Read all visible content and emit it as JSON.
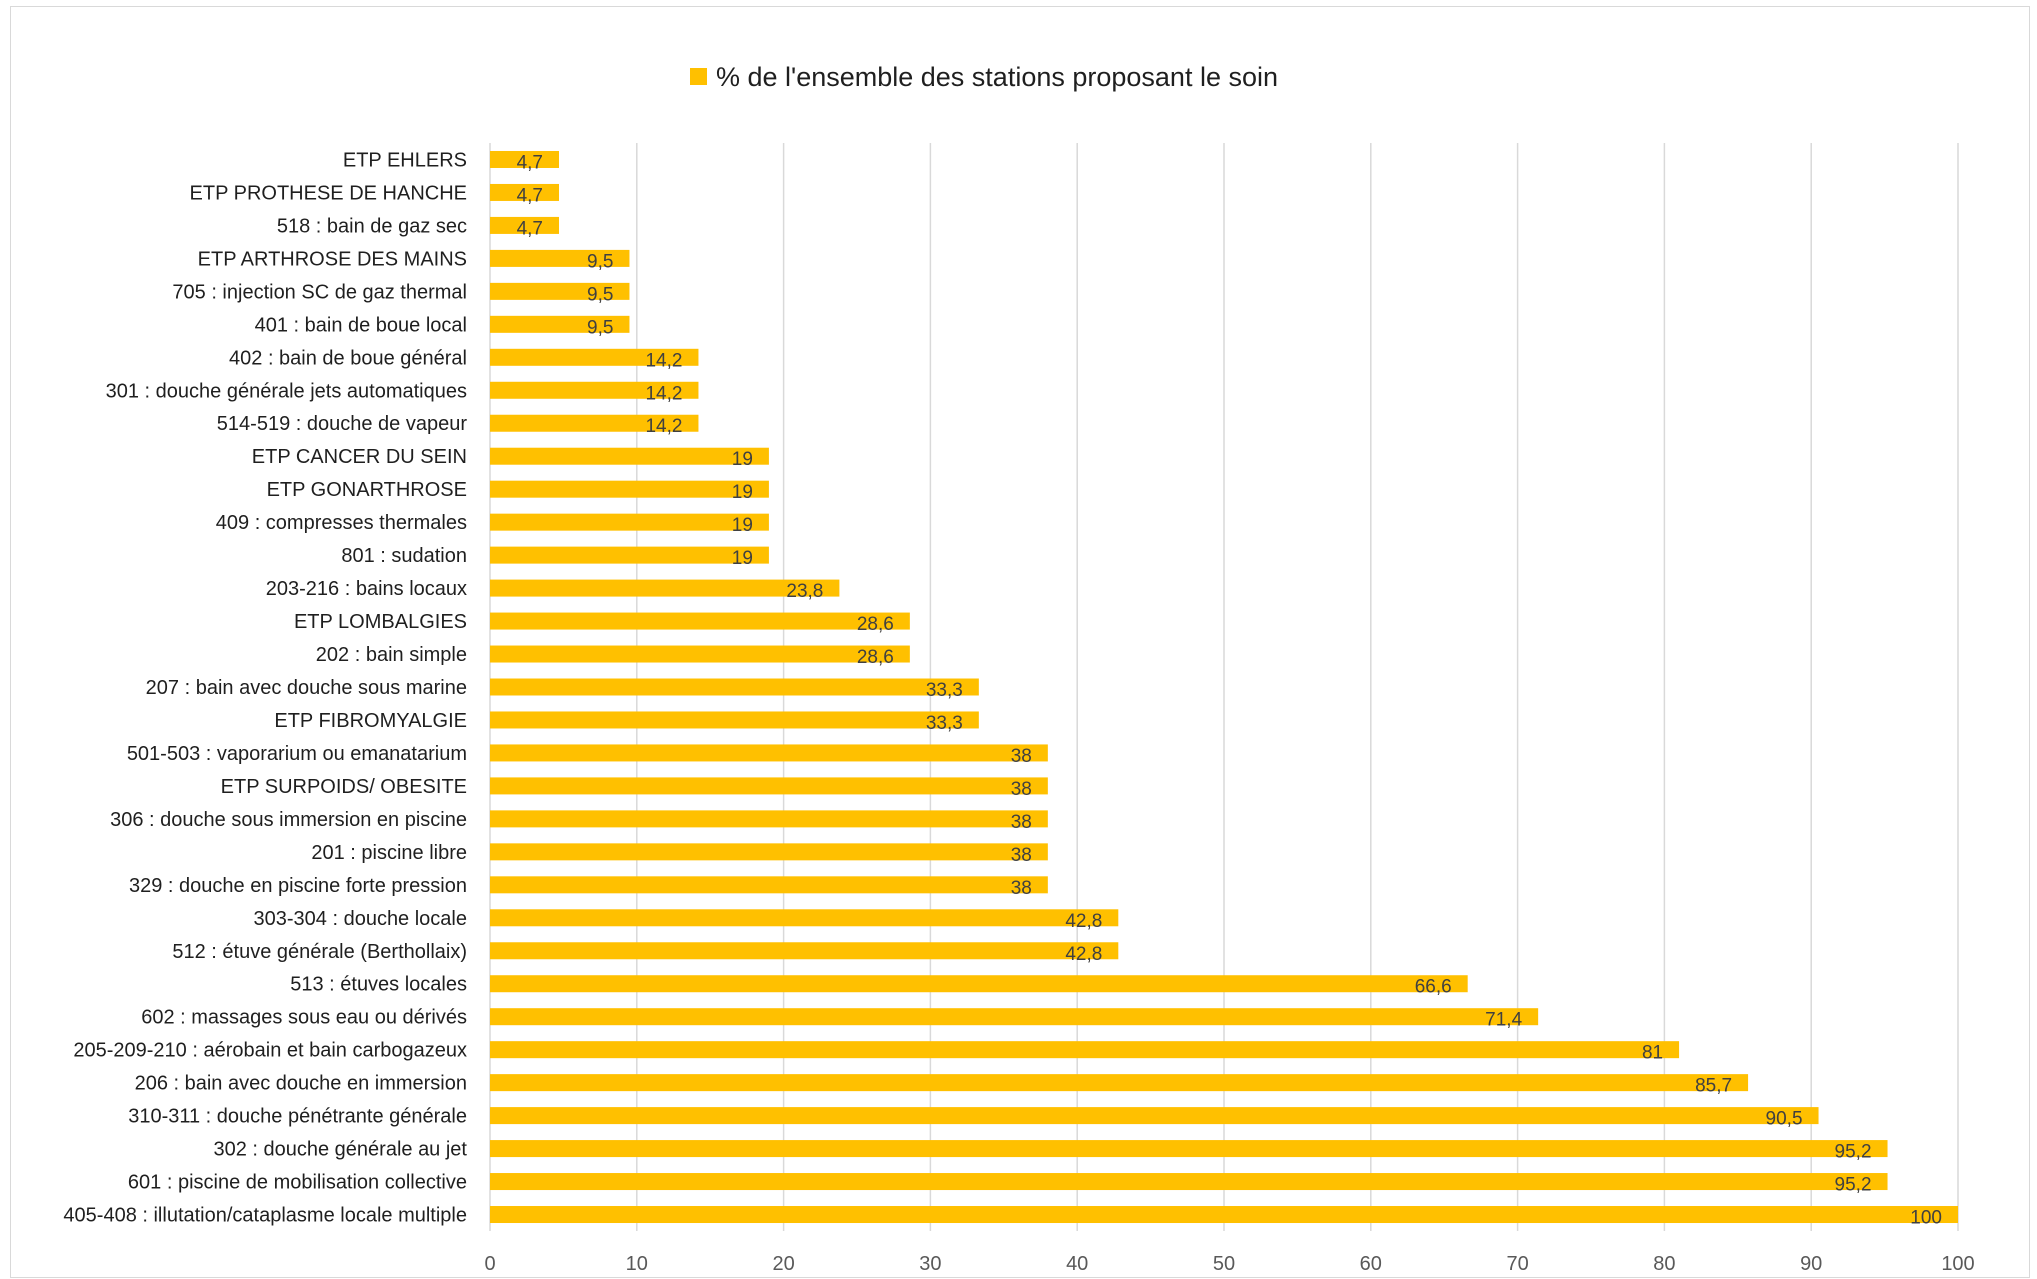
{
  "chart_data": {
    "type": "bar",
    "orientation": "horizontal",
    "legend": {
      "position": "top",
      "label": "% de l'ensemble des stations proposant le soin"
    },
    "color": "#FFC000",
    "xlim": [
      0,
      100
    ],
    "xticks": [
      0,
      10,
      20,
      30,
      40,
      50,
      60,
      70,
      80,
      90,
      100
    ],
    "grid": "vertical",
    "categories": [
      "ETP EHLERS",
      "ETP PROTHESE DE HANCHE",
      "518 : bain de gaz sec",
      "ETP ARTHROSE DES MAINS",
      "705 : injection SC de gaz thermal",
      "401 : bain de boue local",
      "402 : bain de boue général",
      "301 : douche générale jets automatiques",
      "514-519 : douche de vapeur",
      "ETP CANCER DU SEIN",
      "ETP GONARTHROSE",
      "409 : compresses thermales",
      "801 : sudation",
      "203-216 : bains locaux",
      "ETP LOMBALGIES",
      "202 : bain simple",
      "207 : bain avec douche sous marine",
      "ETP FIBROMYALGIE",
      "501-503 : vaporarium ou emanatarium",
      "ETP SURPOIDS/ OBESITE",
      "306 : douche sous immersion en piscine",
      "201 : piscine libre",
      "329 : douche en piscine forte pression",
      "303-304 : douche locale",
      "512 : étuve générale (Berthollaix)",
      "513 : étuves locales",
      "602 : massages sous eau ou dérivés",
      "205-209-210 : aérobain et bain carbogazeux",
      "206 : bain avec douche en immersion",
      "310-311 : douche pénétrante générale",
      "302 : douche générale au jet",
      "601 : piscine de mobilisation collective",
      "405-408 : illutation/cataplasme locale multiple"
    ],
    "values": [
      4.7,
      4.7,
      4.7,
      9.5,
      9.5,
      9.5,
      14.2,
      14.2,
      14.2,
      19,
      19,
      19,
      19,
      23.8,
      28.6,
      28.6,
      33.3,
      33.3,
      38,
      38,
      38,
      38,
      38,
      42.8,
      42.8,
      66.6,
      71.4,
      81,
      85.7,
      90.5,
      95.2,
      95.2,
      100
    ],
    "data_labels": [
      "4,7",
      "4,7",
      "4,7",
      "9,5",
      "9,5",
      "9,5",
      "14,2",
      "14,2",
      "14,2",
      "19",
      "19",
      "19",
      "19",
      "23,8",
      "28,6",
      "28,6",
      "33,3",
      "33,3",
      "38",
      "38",
      "38",
      "38",
      "38",
      "42,8",
      "42,8",
      "66,6",
      "71,4",
      "81",
      "85,7",
      "90,5",
      "95,2",
      "95,2",
      "100"
    ]
  }
}
